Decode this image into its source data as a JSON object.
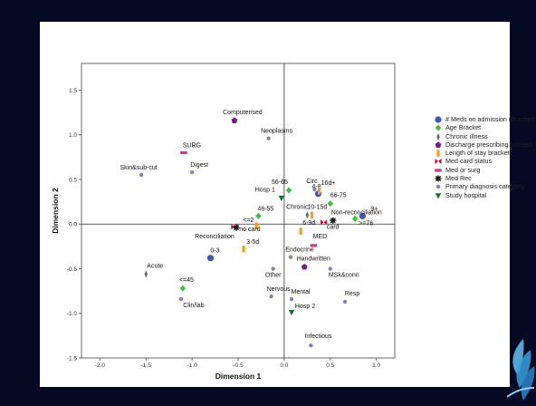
{
  "chart_data": {
    "type": "scatter",
    "title": "",
    "xlabel": "Dimension 1",
    "ylabel": "Dimension 2",
    "xlim": [
      -2.2,
      1.2
    ],
    "ylim": [
      -1.5,
      1.8
    ],
    "xticks": [
      -2.0,
      -1.5,
      -1.0,
      -0.5,
      0.0,
      0.5,
      1.0
    ],
    "xtick_labels": [
      "-2.0",
      "-1.5",
      "-1.0",
      "-0.5",
      "0.0",
      "0.5",
      "1.0"
    ],
    "yticks": [
      1.5,
      1.0,
      0.5,
      0.0,
      -0.5,
      -1.0,
      -1.5
    ],
    "ytick_labels": [
      "1.5",
      "1.0",
      "0.5",
      "0.0",
      "-0.5",
      "-1.0",
      "-1.5"
    ],
    "reference_lines": {
      "x": 0.0,
      "y": 0.0
    },
    "legend_position": "right",
    "series": [
      {
        "name": "# Meds on admission (Bracket)",
        "color": "#3a5bb5",
        "marker": "circle",
        "points": [
          {
            "label": "0-3",
            "x": -0.8,
            "y": -0.38
          },
          {
            "label": "4-8",
            "x": 0.37,
            "y": 0.34
          },
          {
            "label": "9+",
            "x": 0.85,
            "y": 0.09
          }
        ]
      },
      {
        "name": "Age Bracket",
        "color": "#3fbf3f",
        "marker": "diamond",
        "points": [
          {
            "label": "<=45",
            "x": -1.1,
            "y": -0.72
          },
          {
            "label": "46-55",
            "x": -0.28,
            "y": 0.09
          },
          {
            "label": "56-65",
            "x": 0.05,
            "y": 0.38
          },
          {
            "label": "66-75",
            "x": 0.5,
            "y": 0.23
          },
          {
            "label": ">=76",
            "x": 0.77,
            "y": 0.06
          }
        ]
      },
      {
        "name": "Chronic illness",
        "color": "#666666",
        "marker": "thin-diamond",
        "points": [
          {
            "label": "Acute",
            "x": -1.5,
            "y": -0.56
          },
          {
            "label": "Chronic",
            "x": 0.25,
            "y": 0.1
          }
        ]
      },
      {
        "name": "Discharge prescribing process",
        "color": "#7a1a86",
        "marker": "pentagon",
        "points": [
          {
            "label": "Computerised",
            "x": -0.54,
            "y": 1.16
          },
          {
            "label": "Handwritten",
            "x": 0.22,
            "y": -0.48
          }
        ]
      },
      {
        "name": "Length of stay bracket",
        "color": "#ff9b1a",
        "marker": "rect",
        "points": [
          {
            "label": "<=2",
            "x": -0.3,
            "y": -0.02
          },
          {
            "label": "3-5d",
            "x": -0.44,
            "y": -0.28
          },
          {
            "label": "6-9d",
            "x": 0.18,
            "y": -0.08
          },
          {
            "label": "10-15d",
            "x": 0.3,
            "y": 0.1
          },
          {
            "label": "16d+",
            "x": 0.38,
            "y": 0.37
          }
        ]
      },
      {
        "name": "Med card status",
        "color": "#c0143c",
        "marker": "bowtie",
        "points": [
          {
            "label": "no card",
            "x": -0.54,
            "y": -0.03
          },
          {
            "label": "card",
            "x": 0.43,
            "y": 0.02
          }
        ]
      },
      {
        "name": "Med or surg",
        "color": "#c83c82",
        "marker": "hbar",
        "points": [
          {
            "label": "SURG",
            "x": -1.09,
            "y": 0.8
          },
          {
            "label": "MED",
            "x": 0.32,
            "y": -0.24
          }
        ]
      },
      {
        "name": "Med Rec",
        "color": "#111111",
        "marker": "asterisk",
        "points": [
          {
            "label": "Reconciliation",
            "x": -0.52,
            "y": -0.04
          },
          {
            "label": "Non-reconciliation",
            "x": 0.53,
            "y": 0.04
          }
        ]
      },
      {
        "name": "Primary diagnosis category",
        "color": "#8a80b8",
        "marker": "dot",
        "points": [
          {
            "label": "Skin&sub-cut",
            "x": -1.55,
            "y": 0.55
          },
          {
            "label": "Digest",
            "x": -1.0,
            "y": 0.58
          },
          {
            "label": "Neoplasms",
            "x": -0.17,
            "y": 0.96
          },
          {
            "label": "Circ",
            "x": 0.33,
            "y": 0.39
          },
          {
            "label": "Endocrine",
            "x": 0.07,
            "y": -0.37
          },
          {
            "label": "Other",
            "x": -0.12,
            "y": -0.5
          },
          {
            "label": "MSk&conn",
            "x": 0.5,
            "y": -0.5
          },
          {
            "label": "Nervous",
            "x": -0.14,
            "y": -0.81
          },
          {
            "label": "Mental",
            "x": 0.08,
            "y": -0.84
          },
          {
            "label": "Clin/lab",
            "x": -1.12,
            "y": -0.84
          },
          {
            "label": "Resp",
            "x": 0.66,
            "y": -0.87
          },
          {
            "label": "Infectious",
            "x": 0.29,
            "y": -1.36
          }
        ]
      },
      {
        "name": "Study hospital",
        "color": "#1f6e3a",
        "marker": "triangle-down",
        "points": [
          {
            "label": "Hosp 1",
            "x": -0.03,
            "y": 0.29
          },
          {
            "label": "Hosp 2",
            "x": 0.08,
            "y": -0.99
          }
        ]
      }
    ]
  }
}
